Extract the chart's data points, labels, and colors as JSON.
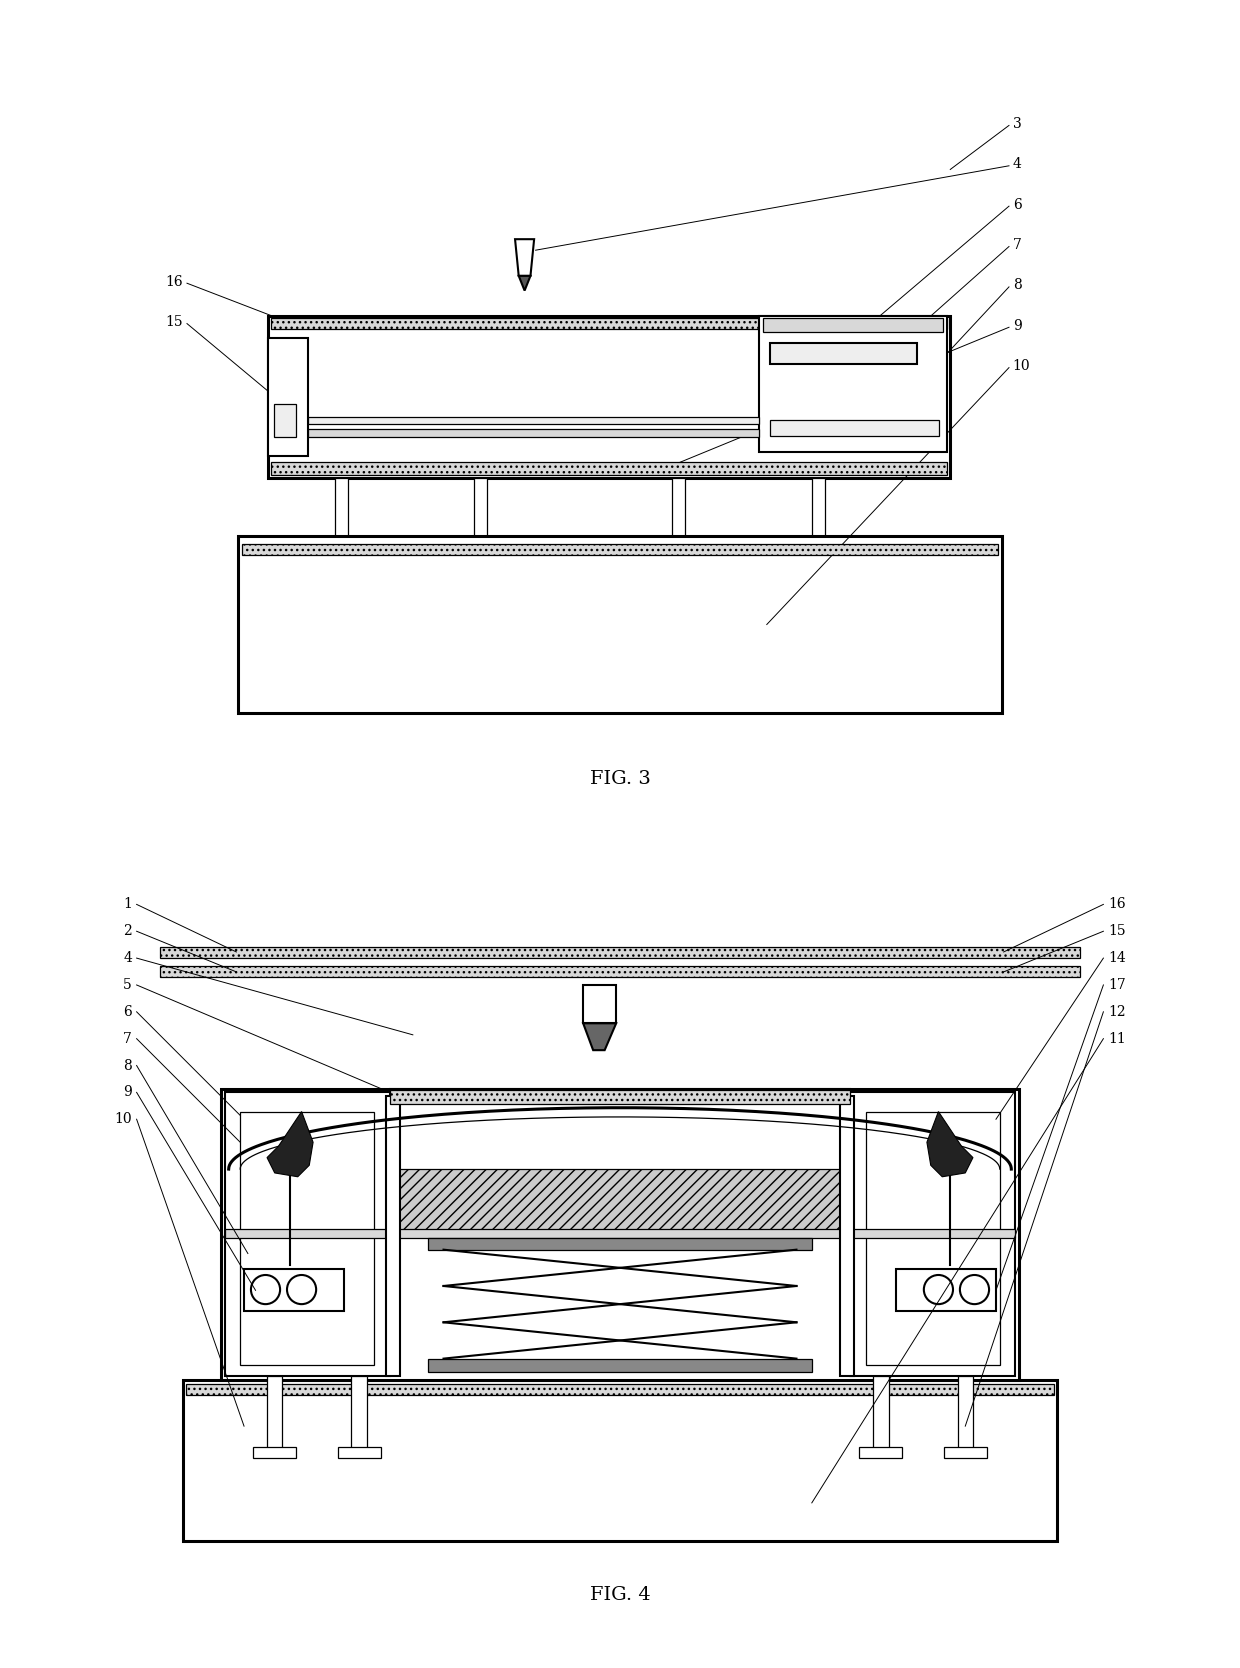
{
  "fig3_title": "FIG. 3",
  "fig4_title": "FIG. 4",
  "bg_color": "#ffffff",
  "lw_thick": 2.2,
  "lw_main": 1.5,
  "lw_thin": 0.9,
  "lw_leader": 0.7,
  "label_fontsize": 10,
  "title_fontsize": 14,
  "gray_fill": "#d8d8d8",
  "dark_fill": "#222222",
  "mid_gray": "#aaaaaa"
}
